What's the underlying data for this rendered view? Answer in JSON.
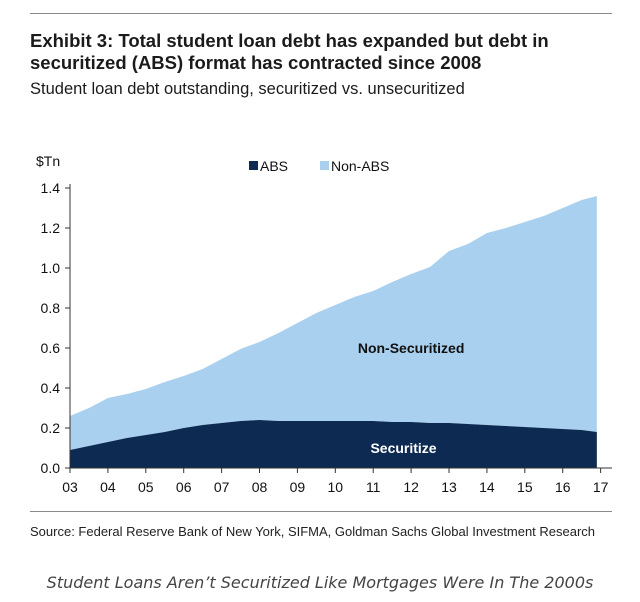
{
  "title": "Exhibit 3: Total student loan debt has expanded but debt in securitized (ABS) format has contracted since 2008",
  "subtitle": "Student loan debt outstanding, securitized vs. unsecuritized",
  "source": "Source: Federal Reserve Bank of New York, SIFMA, Goldman Sachs Global Investment Research",
  "caption": "Student Loans Aren’t Securitized Like Mortgages Were In The 2000s",
  "chart_data": {
    "type": "area",
    "stacked": true,
    "ylabel": "$Tn",
    "ylim": [
      0,
      1.4
    ],
    "yticks": [
      "0.0",
      "0.2",
      "0.4",
      "0.6",
      "0.8",
      "1.0",
      "1.2",
      "1.4"
    ],
    "xticks": [
      "03",
      "04",
      "05",
      "06",
      "07",
      "08",
      "09",
      "10",
      "11",
      "12",
      "13",
      "14",
      "15",
      "16",
      "17"
    ],
    "xlim": [
      2003,
      2017.3
    ],
    "x": [
      2003.0,
      2003.5,
      2004.0,
      2004.5,
      2005.0,
      2005.5,
      2006.0,
      2006.5,
      2007.0,
      2007.5,
      2008.0,
      2008.5,
      2009.0,
      2009.5,
      2010.0,
      2010.5,
      2011.0,
      2011.5,
      2012.0,
      2012.5,
      2013.0,
      2013.5,
      2014.0,
      2014.5,
      2015.0,
      2015.5,
      2016.0,
      2016.5,
      2016.9
    ],
    "series": [
      {
        "name": "ABS",
        "color": "#0d2a52",
        "values": [
          0.09,
          0.11,
          0.13,
          0.15,
          0.165,
          0.18,
          0.2,
          0.215,
          0.225,
          0.235,
          0.24,
          0.235,
          0.235,
          0.235,
          0.235,
          0.235,
          0.235,
          0.23,
          0.23,
          0.225,
          0.225,
          0.22,
          0.215,
          0.21,
          0.205,
          0.2,
          0.195,
          0.19,
          0.18
        ]
      },
      {
        "name": "Non-ABS",
        "color": "#a9d0ee",
        "values": [
          0.17,
          0.19,
          0.22,
          0.22,
          0.23,
          0.25,
          0.26,
          0.28,
          0.32,
          0.36,
          0.39,
          0.44,
          0.49,
          0.54,
          0.58,
          0.62,
          0.65,
          0.7,
          0.74,
          0.78,
          0.86,
          0.9,
          0.96,
          0.99,
          1.025,
          1.06,
          1.105,
          1.15,
          1.18
        ]
      }
    ],
    "legend": {
      "position": "top",
      "items": [
        "ABS",
        "Non-ABS"
      ]
    },
    "annotations": [
      {
        "text": "Non-Securitized",
        "x": 2012.0,
        "y": 0.6,
        "color": "#111111"
      },
      {
        "text": "Securitize",
        "x": 2011.8,
        "y": 0.1,
        "color": "#ffffff"
      }
    ]
  }
}
